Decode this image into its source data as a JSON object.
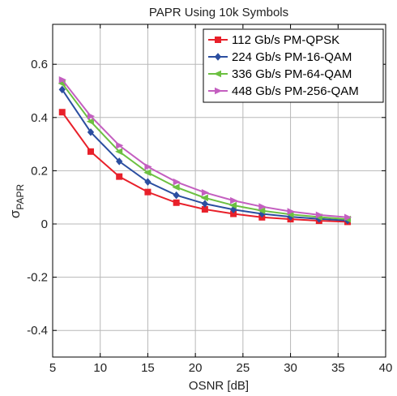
{
  "chart_data": {
    "type": "line",
    "title": "PAPR Using 10k Symbols",
    "xlabel": "OSNR [dB]",
    "ylabel_main": "σ",
    "ylabel_sub": "PAPR",
    "xlim": [
      5,
      40
    ],
    "ylim": [
      -0.5,
      0.75
    ],
    "xticks": [
      5,
      10,
      15,
      20,
      25,
      30,
      35,
      40
    ],
    "yticks": [
      -0.4,
      -0.2,
      0,
      0.2,
      0.4,
      0.6
    ],
    "ytick_labels": [
      "-0.4",
      "-0.2",
      "0",
      "0.2",
      "0.4",
      "0.6"
    ],
    "grid": true,
    "legend_position": "top-right",
    "x": [
      6,
      9,
      12,
      15,
      18,
      21,
      24,
      27,
      30,
      33,
      36
    ],
    "series": [
      {
        "name": "112 Gb/s PM-QPSK",
        "color": "#e8202a",
        "marker": "square",
        "values": [
          0.42,
          0.272,
          0.178,
          0.12,
          0.08,
          0.055,
          0.038,
          0.025,
          0.018,
          0.012,
          0.008
        ]
      },
      {
        "name": "224 Gb/s PM-16-QAM",
        "color": "#2b4ea0",
        "marker": "diamond",
        "values": [
          0.505,
          0.345,
          0.235,
          0.158,
          0.108,
          0.076,
          0.054,
          0.038,
          0.027,
          0.019,
          0.013
        ]
      },
      {
        "name": "336 Gb/s PM-64-QAM",
        "color": "#6cc041",
        "marker": "triangle-left",
        "values": [
          0.528,
          0.385,
          0.272,
          0.193,
          0.138,
          0.098,
          0.07,
          0.05,
          0.036,
          0.026,
          0.018
        ]
      },
      {
        "name": "448 Gb/s PM-256-QAM",
        "color": "#c45fc0",
        "marker": "triangle-right",
        "values": [
          0.542,
          0.405,
          0.295,
          0.215,
          0.158,
          0.118,
          0.088,
          0.065,
          0.047,
          0.034,
          0.025
        ]
      }
    ]
  }
}
